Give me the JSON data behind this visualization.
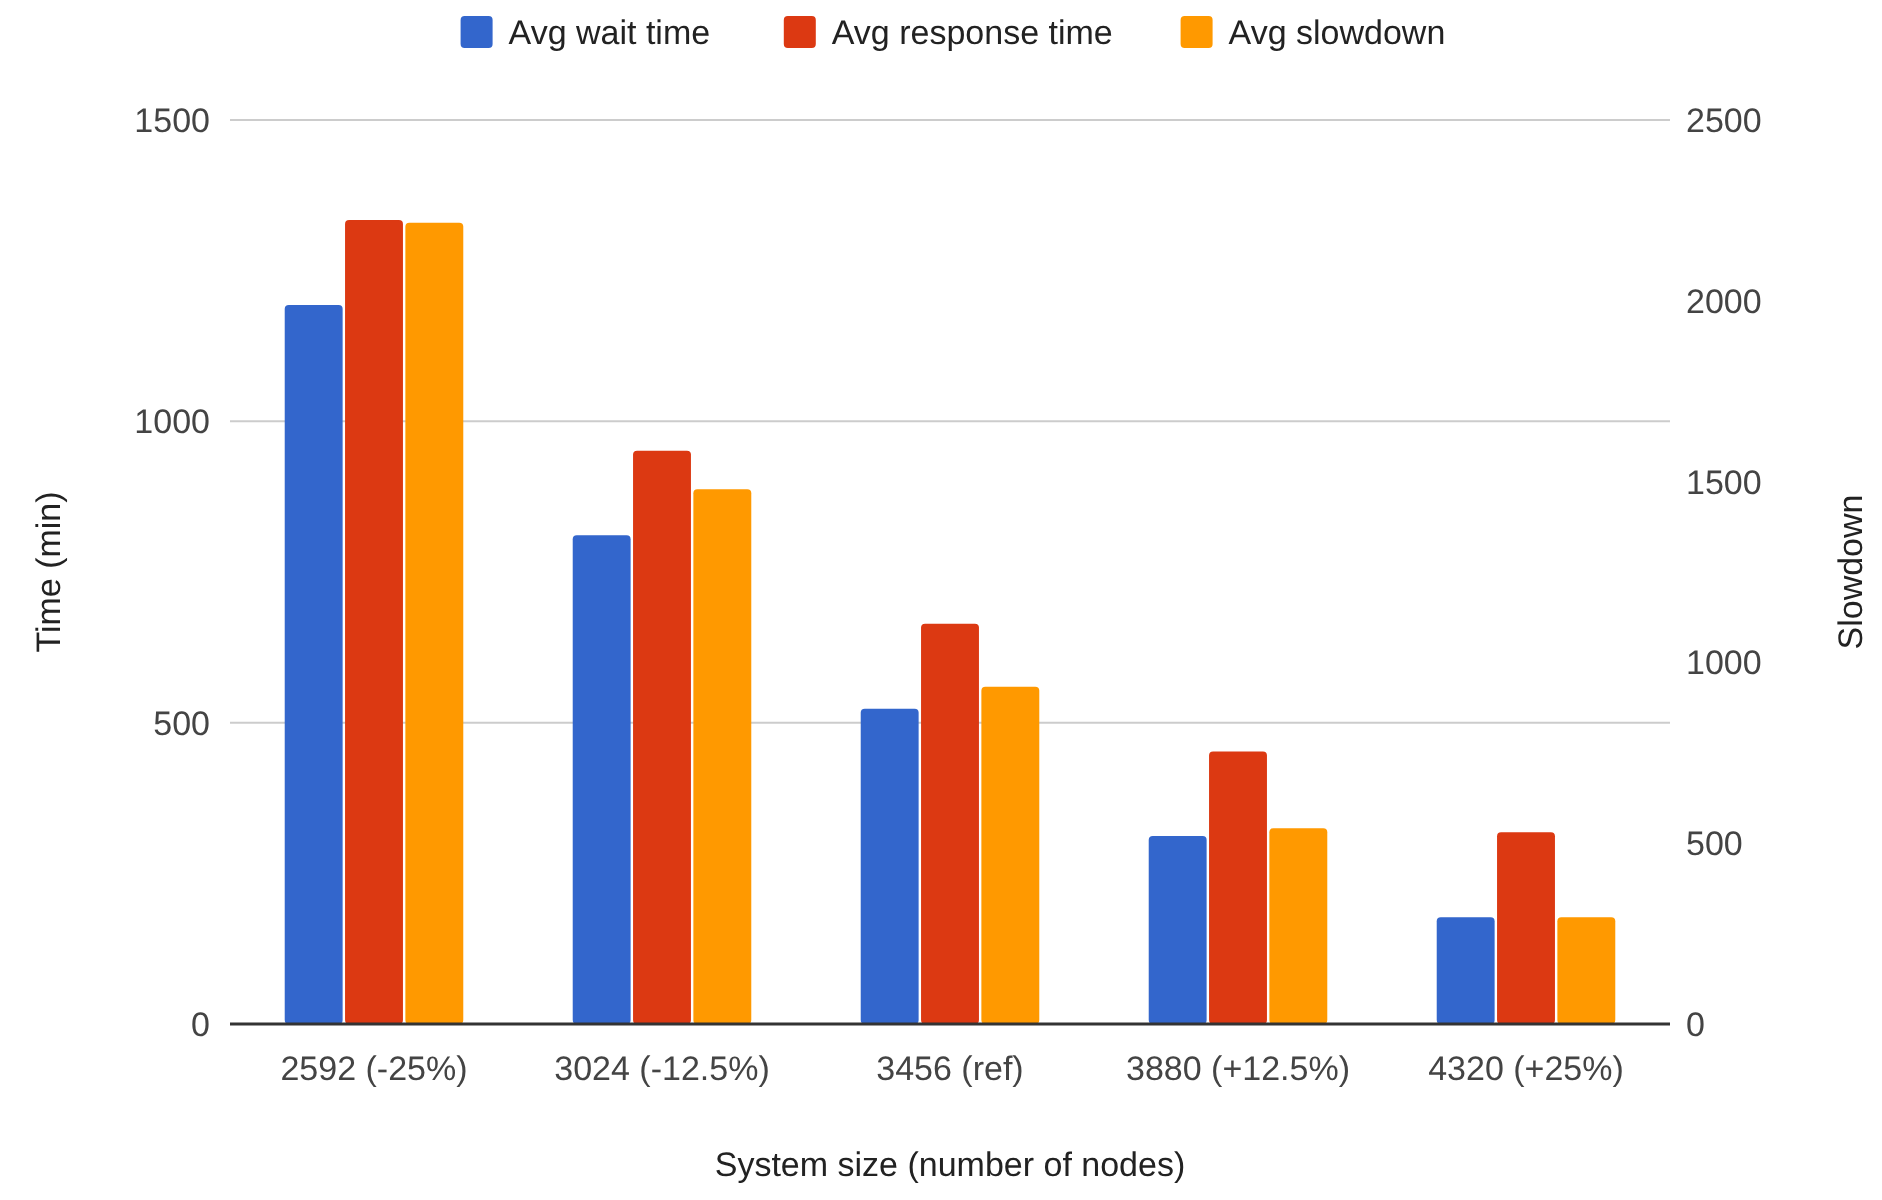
{
  "chart_data": {
    "type": "bar",
    "xlabel": "System size (number of nodes)",
    "ylabel": "Time (min)",
    "y2label": "Slowdown",
    "categories": [
      "2592 (-25%)",
      "3024 (-12.5%)",
      "3456 (ref)",
      "3880 (+12.5%)",
      "4320 (+25%)"
    ],
    "series": [
      {
        "name": "Avg wait time",
        "color": "#3366cc",
        "values": [
          1193,
          811,
          523,
          312,
          177
        ]
      },
      {
        "name": "Avg response time",
        "color": "#dc3912",
        "values": [
          1334,
          951,
          664,
          452,
          318
        ]
      },
      {
        "name": "Avg slowdown",
        "color": "#ff9900",
        "axis": "y2",
        "values": [
          2216,
          1479,
          933,
          541,
          295
        ]
      }
    ],
    "ylim": [
      0,
      1500
    ],
    "yticks": [
      0,
      500,
      1000,
      1500
    ],
    "y2lim": [
      0,
      2500
    ],
    "y2ticks": [
      0,
      500,
      1000,
      1500,
      2000,
      2500
    ],
    "grid": "y",
    "legend": "top"
  }
}
